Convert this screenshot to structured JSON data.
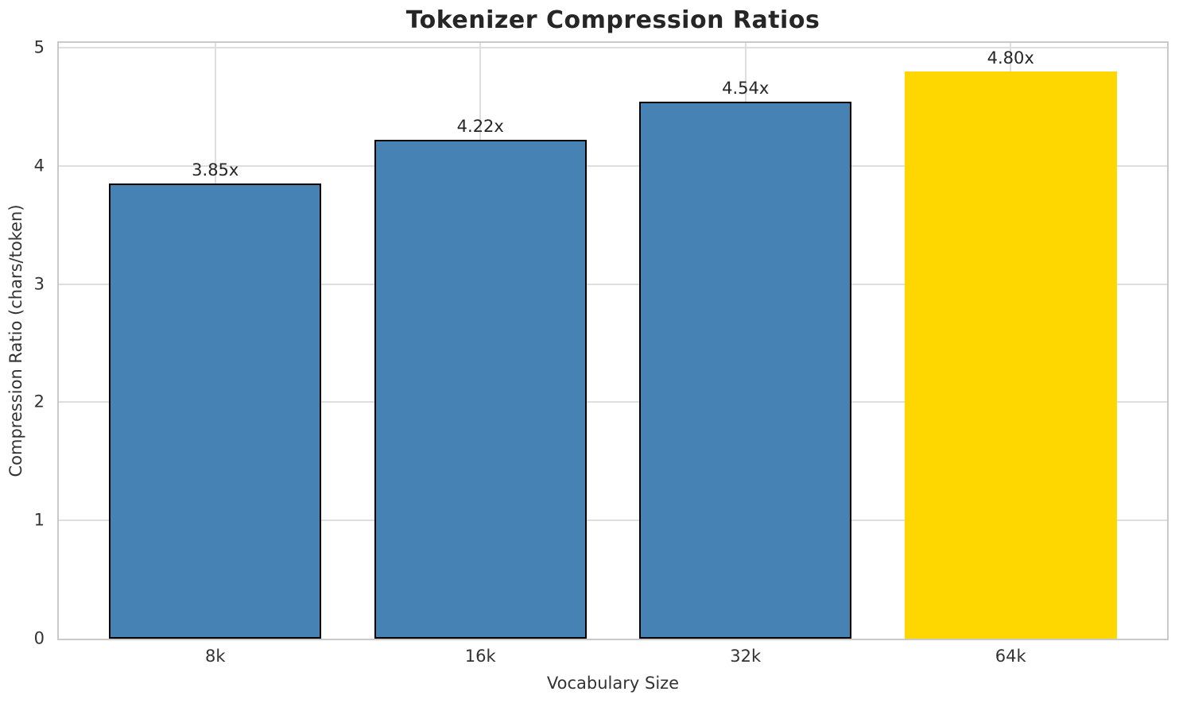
{
  "chart_data": {
    "type": "bar",
    "title": "Tokenizer Compression Ratios",
    "xlabel": "Vocabulary Size",
    "ylabel": "Compression Ratio (chars/token)",
    "categories": [
      "8k",
      "16k",
      "32k",
      "64k"
    ],
    "values": [
      3.85,
      4.22,
      4.54,
      4.8
    ],
    "bar_labels": [
      "3.85x",
      "4.22x",
      "4.54x",
      "4.80x"
    ],
    "highlight_index": 3,
    "bar_width": 0.8,
    "ylim": [
      0,
      5.04
    ],
    "xlim": [
      -0.59,
      3.59
    ],
    "yticks": [
      0,
      1,
      2,
      3,
      4,
      5
    ],
    "grid": true,
    "legend_position": "none",
    "colors": {
      "bar_default": "#4682B4",
      "bar_highlight": "#FFD700",
      "bar_edge": "#000000",
      "grid_line": "#DEDEDE",
      "spine": "#C9C9C9",
      "title_text": "#262626",
      "value_label_text": "#262626",
      "tick_text": "#333333",
      "background": "#FFFFFF"
    }
  }
}
